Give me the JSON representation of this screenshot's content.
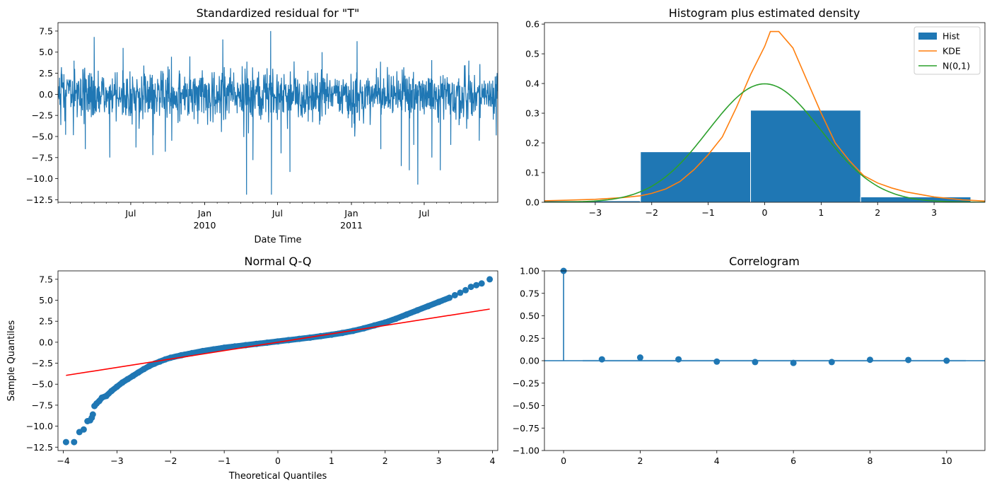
{
  "chart_data": [
    {
      "id": "resid",
      "type": "line",
      "title": "Standardized residual for \"T\"",
      "xlabel": "Date Time",
      "ylabel": "",
      "ylim": [
        -12.8,
        8.5
      ],
      "xlim": [
        "2009-01-01",
        "2011-12-31"
      ],
      "yticks": [
        7.5,
        5.0,
        2.5,
        0.0,
        -2.5,
        -5.0,
        -7.5,
        -10.0,
        -12.5
      ],
      "ytick_labels": [
        "7.5",
        "5.0",
        "2.5",
        "0.0",
        "−2.5",
        "−5.0",
        "−7.5",
        "−10.0",
        "−12.5"
      ],
      "xticks": [
        {
          "date": "2009-07-01",
          "label": "Jul",
          "sub": ""
        },
        {
          "date": "2010-01-01",
          "label": "Jan",
          "sub": "2010"
        },
        {
          "date": "2010-07-01",
          "label": "Jul",
          "sub": ""
        },
        {
          "date": "2011-01-01",
          "label": "Jan",
          "sub": "2011"
        },
        {
          "date": "2011-07-01",
          "label": "Jul",
          "sub": ""
        }
      ],
      "color": "#1f77b4",
      "spikes": [
        {
          "date": "2009-01-20",
          "value": -4.8
        },
        {
          "date": "2009-02-10",
          "value": 4.0
        },
        {
          "date": "2009-03-10",
          "value": -6.5
        },
        {
          "date": "2009-04-01",
          "value": 6.8
        },
        {
          "date": "2009-05-10",
          "value": -7.5
        },
        {
          "date": "2009-06-12",
          "value": 5.5
        },
        {
          "date": "2009-07-14",
          "value": -6.3
        },
        {
          "date": "2009-08-25",
          "value": -7.2
        },
        {
          "date": "2009-09-25",
          "value": -6.8
        },
        {
          "date": "2009-11-25",
          "value": 4.5
        },
        {
          "date": "2010-02-15",
          "value": 6.5
        },
        {
          "date": "2010-04-15",
          "value": -11.9
        },
        {
          "date": "2010-05-01",
          "value": -7.8
        },
        {
          "date": "2010-06-14",
          "value": 7.5
        },
        {
          "date": "2010-06-16",
          "value": -11.9
        },
        {
          "date": "2010-07-10",
          "value": -7.0
        },
        {
          "date": "2010-08-01",
          "value": -9.2
        },
        {
          "date": "2010-10-20",
          "value": 5.0
        },
        {
          "date": "2011-01-15",
          "value": 6.3
        },
        {
          "date": "2011-03-15",
          "value": -6.5
        },
        {
          "date": "2011-05-05",
          "value": -8.5
        },
        {
          "date": "2011-05-25",
          "value": -9.0
        },
        {
          "date": "2011-06-05",
          "value": -6.0
        },
        {
          "date": "2011-06-15",
          "value": -10.7
        },
        {
          "date": "2011-07-20",
          "value": -7.5
        },
        {
          "date": "2011-08-10",
          "value": -9.0
        },
        {
          "date": "2011-09-05",
          "value": -6.0
        },
        {
          "date": "2011-10-20",
          "value": 4.0
        },
        {
          "date": "2011-11-15",
          "value": -5.5
        },
        {
          "date": "2011-12-20",
          "value": -3.0
        }
      ]
    },
    {
      "id": "hist",
      "type": "bar",
      "title": "Histogram plus estimated density",
      "xlim": [
        -3.9,
        3.9
      ],
      "ylim": [
        0,
        0.605
      ],
      "xticks": [
        -3,
        -2,
        -1,
        0,
        1,
        2,
        3
      ],
      "xtick_labels": [
        "−3",
        "−2",
        "−1",
        "0",
        "1",
        "2",
        "3"
      ],
      "yticks": [
        0.0,
        0.1,
        0.2,
        0.3,
        0.4,
        0.5,
        0.6
      ],
      "ytick_labels": [
        "0.0",
        "0.1",
        "0.2",
        "0.3",
        "0.4",
        "0.5",
        "0.6"
      ],
      "bins": [
        {
          "x0": -4.15,
          "x1": -2.2,
          "value": 0.005
        },
        {
          "x0": -2.2,
          "x1": -0.25,
          "value": 0.17
        },
        {
          "x0": -0.25,
          "x1": 1.7,
          "value": 0.31
        },
        {
          "x0": 1.7,
          "x1": 3.65,
          "value": 0.018
        }
      ],
      "kde": {
        "x": [
          -3.9,
          -3.5,
          -3.0,
          -2.5,
          -2.2,
          -2.0,
          -1.75,
          -1.5,
          -1.25,
          -1.0,
          -0.75,
          -0.5,
          -0.25,
          0.0,
          0.1,
          0.25,
          0.5,
          0.75,
          1.0,
          1.25,
          1.5,
          1.75,
          2.0,
          2.25,
          2.5,
          3.0,
          3.5,
          3.9
        ],
        "y": [
          0.005,
          0.007,
          0.01,
          0.016,
          0.022,
          0.03,
          0.045,
          0.07,
          0.11,
          0.16,
          0.22,
          0.32,
          0.43,
          0.525,
          0.575,
          0.575,
          0.52,
          0.41,
          0.3,
          0.2,
          0.14,
          0.09,
          0.065,
          0.048,
          0.035,
          0.018,
          0.008,
          0.004
        ]
      },
      "normal": {
        "mean": 0,
        "std": 1
      },
      "series": [
        {
          "name": "Hist",
          "color": "#1f77b4"
        },
        {
          "name": "KDE",
          "color": "#ff7f0e"
        },
        {
          "name": "N(0,1)",
          "color": "#2ca02c"
        }
      ],
      "legend": "top-right"
    },
    {
      "id": "qq",
      "type": "scatter",
      "title": "Normal Q-Q",
      "xlabel": "Theoretical Quantiles",
      "ylabel": "Sample Quantiles",
      "xlim": [
        -4.1,
        4.1
      ],
      "ylim": [
        -12.9,
        8.5
      ],
      "xticks": [
        -4,
        -3,
        -2,
        -1,
        0,
        1,
        2,
        3,
        4
      ],
      "xtick_labels": [
        "−4",
        "−3",
        "−2",
        "−1",
        "0",
        "1",
        "2",
        "3",
        "4"
      ],
      "yticks": [
        7.5,
        5.0,
        2.5,
        0.0,
        -2.5,
        -5.0,
        -7.5,
        -10.0,
        -12.5
      ],
      "ytick_labels": [
        "7.5",
        "5.0",
        "2.5",
        "0.0",
        "−2.5",
        "−5.0",
        "−7.5",
        "−10.0",
        "−12.5"
      ],
      "points_color": "#1f77b4",
      "line_color": "#ff0000",
      "reference_line": [
        [
          -3.95,
          -3.95
        ],
        [
          3.95,
          3.95
        ]
      ],
      "points": {
        "x": [
          -3.95,
          -3.8,
          -3.7,
          -3.62,
          -3.55,
          -3.5,
          -3.47,
          -3.45,
          -3.42,
          -3.38,
          -3.33,
          -3.28,
          -3.2,
          -3.1,
          -3.0,
          -2.9,
          -2.8,
          -2.7,
          -2.6,
          -2.5,
          -2.4,
          -2.3,
          -2.2,
          -2.1,
          -2.0,
          -1.8,
          -1.6,
          -1.4,
          -1.2,
          -1.0,
          -0.8,
          -0.6,
          -0.4,
          -0.2,
          0.0,
          0.2,
          0.4,
          0.6,
          0.8,
          1.0,
          1.2,
          1.4,
          1.6,
          1.8,
          2.0,
          2.2,
          2.4,
          2.6,
          2.8,
          3.0,
          3.2,
          3.3,
          3.4,
          3.5,
          3.6,
          3.7,
          3.8,
          3.95
        ],
        "y": [
          -11.9,
          -11.9,
          -10.7,
          -10.4,
          -9.4,
          -9.3,
          -9.0,
          -8.6,
          -7.6,
          -7.3,
          -7.0,
          -6.6,
          -6.4,
          -5.8,
          -5.3,
          -4.8,
          -4.4,
          -4.0,
          -3.6,
          -3.2,
          -2.85,
          -2.55,
          -2.3,
          -2.05,
          -1.85,
          -1.55,
          -1.3,
          -1.05,
          -0.85,
          -0.65,
          -0.5,
          -0.35,
          -0.2,
          -0.05,
          0.1,
          0.25,
          0.4,
          0.55,
          0.72,
          0.9,
          1.1,
          1.35,
          1.65,
          2.0,
          2.35,
          2.8,
          3.3,
          3.8,
          4.3,
          4.8,
          5.3,
          5.6,
          5.9,
          6.2,
          6.6,
          6.8,
          7.0,
          7.5
        ]
      }
    },
    {
      "id": "acf",
      "type": "stem",
      "title": "Correlogram",
      "xlim": [
        -0.5,
        11.0
      ],
      "ylim": [
        -1.0,
        1.0
      ],
      "xticks": [
        0,
        2,
        4,
        6,
        8,
        10
      ],
      "xtick_labels": [
        "0",
        "2",
        "4",
        "6",
        "8",
        "10"
      ],
      "yticks": [
        1.0,
        0.75,
        0.5,
        0.25,
        0.0,
        -0.25,
        -0.5,
        -0.75,
        -1.0
      ],
      "ytick_labels": [
        "1.00",
        "0.75",
        "0.50",
        "0.25",
        "0.00",
        "−0.25",
        "−0.50",
        "−0.75",
        "−1.00"
      ],
      "lags": [
        0,
        1,
        2,
        3,
        4,
        5,
        6,
        7,
        8,
        9,
        10
      ],
      "values": [
        1.0,
        0.015,
        0.035,
        0.015,
        -0.01,
        -0.015,
        -0.025,
        -0.015,
        0.01,
        0.008,
        0.0
      ],
      "confidence_band": 0.01,
      "color": "#1f77b4"
    }
  ]
}
